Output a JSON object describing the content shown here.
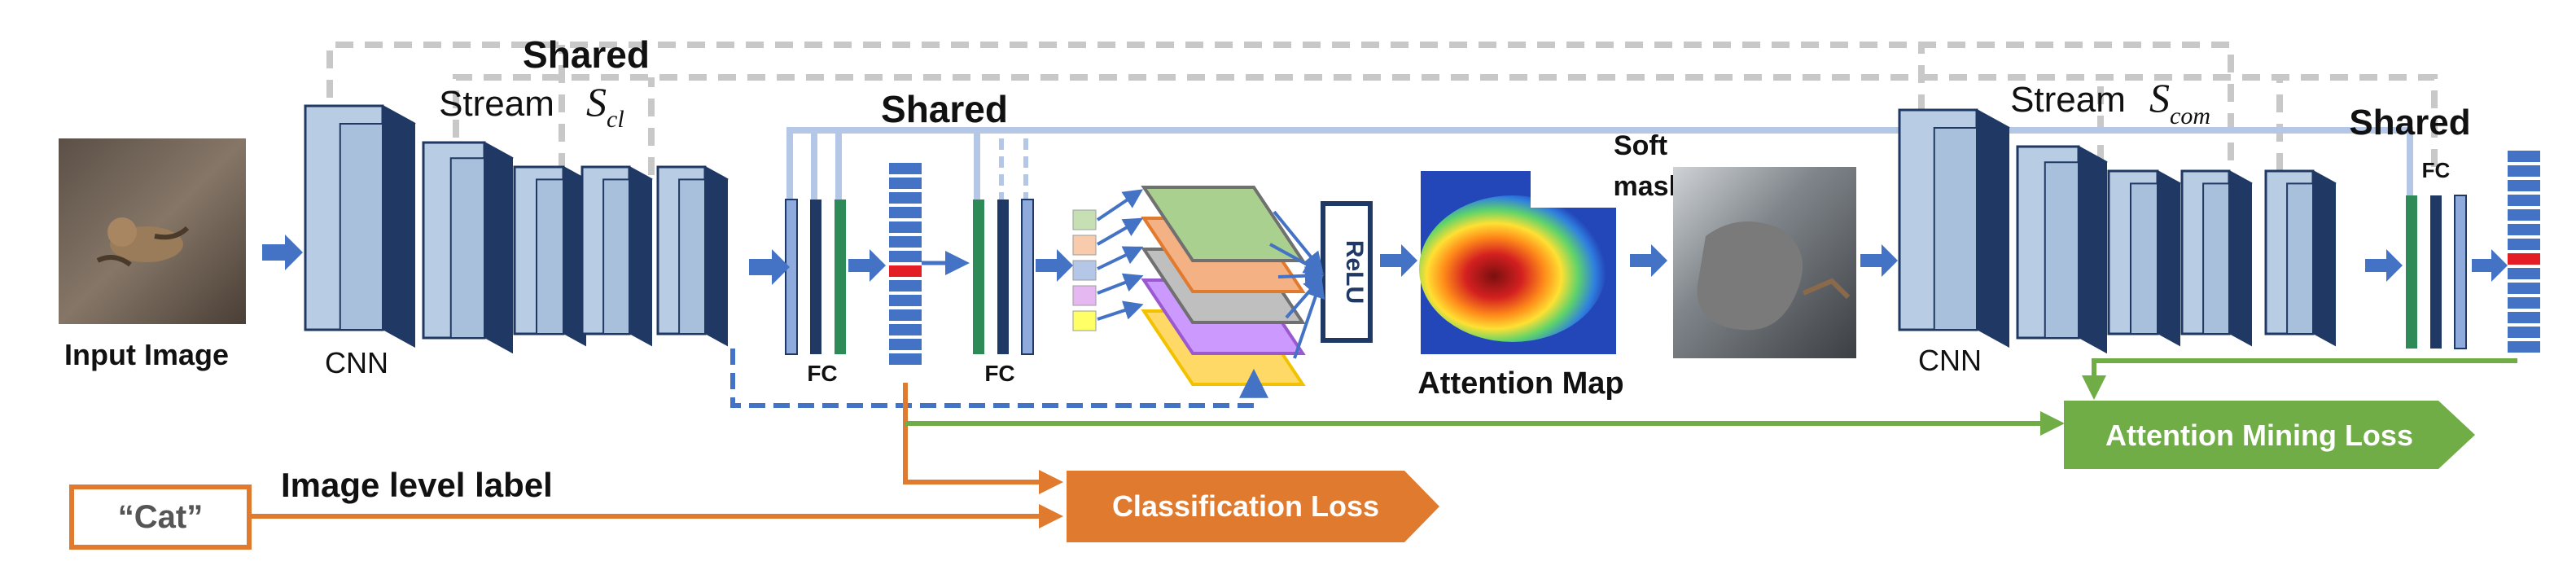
{
  "labels": {
    "input_image": "Input  Image",
    "cnn_left": "CNN",
    "cnn_right": "CNN",
    "shared_top_left": "Shared",
    "stream_left_word": "Stream",
    "stream_left_symbol": "S",
    "stream_left_sub": "cl",
    "shared_mid": "Shared",
    "fc_1": "FC",
    "fc_2": "FC",
    "fc_3": "FC",
    "relu": "ReLU",
    "soft_mask": [
      "Soft",
      "mask"
    ],
    "attention_map": "Attention Map",
    "stream_right_word": "Stream",
    "stream_right_symbol": "S",
    "stream_right_sub": "com",
    "shared_right": "Shared",
    "image_level_label": "Image level label",
    "cat_label": "“Cat”",
    "classification_loss": "Classification Loss",
    "attention_mining_loss": "Attention Mining Loss"
  },
  "colors": {
    "block_face": "#b8cce4",
    "block_side": "#1f3864",
    "block_edge": "#1f3864",
    "arrow_blue": "#4472c4",
    "dashed_gray": "#c8c8c8",
    "shared_line": "#b4c7e7",
    "orange": "#e07a2e",
    "green": "#70ad47",
    "highlight_red": "#e31e24",
    "fc_green": "#2e8b57",
    "fc_dark": "#1f3864",
    "fc_light": "#8faadc"
  },
  "feature_map_colors": [
    "#a9d08e",
    "#f4b183",
    "#bfbfbf",
    "#cc99ff",
    "#ffd966"
  ],
  "small_square_colors": [
    "#c6e0b4",
    "#f8cbad",
    "#b4c7e7",
    "#e6b8f2",
    "#ffff66"
  ]
}
